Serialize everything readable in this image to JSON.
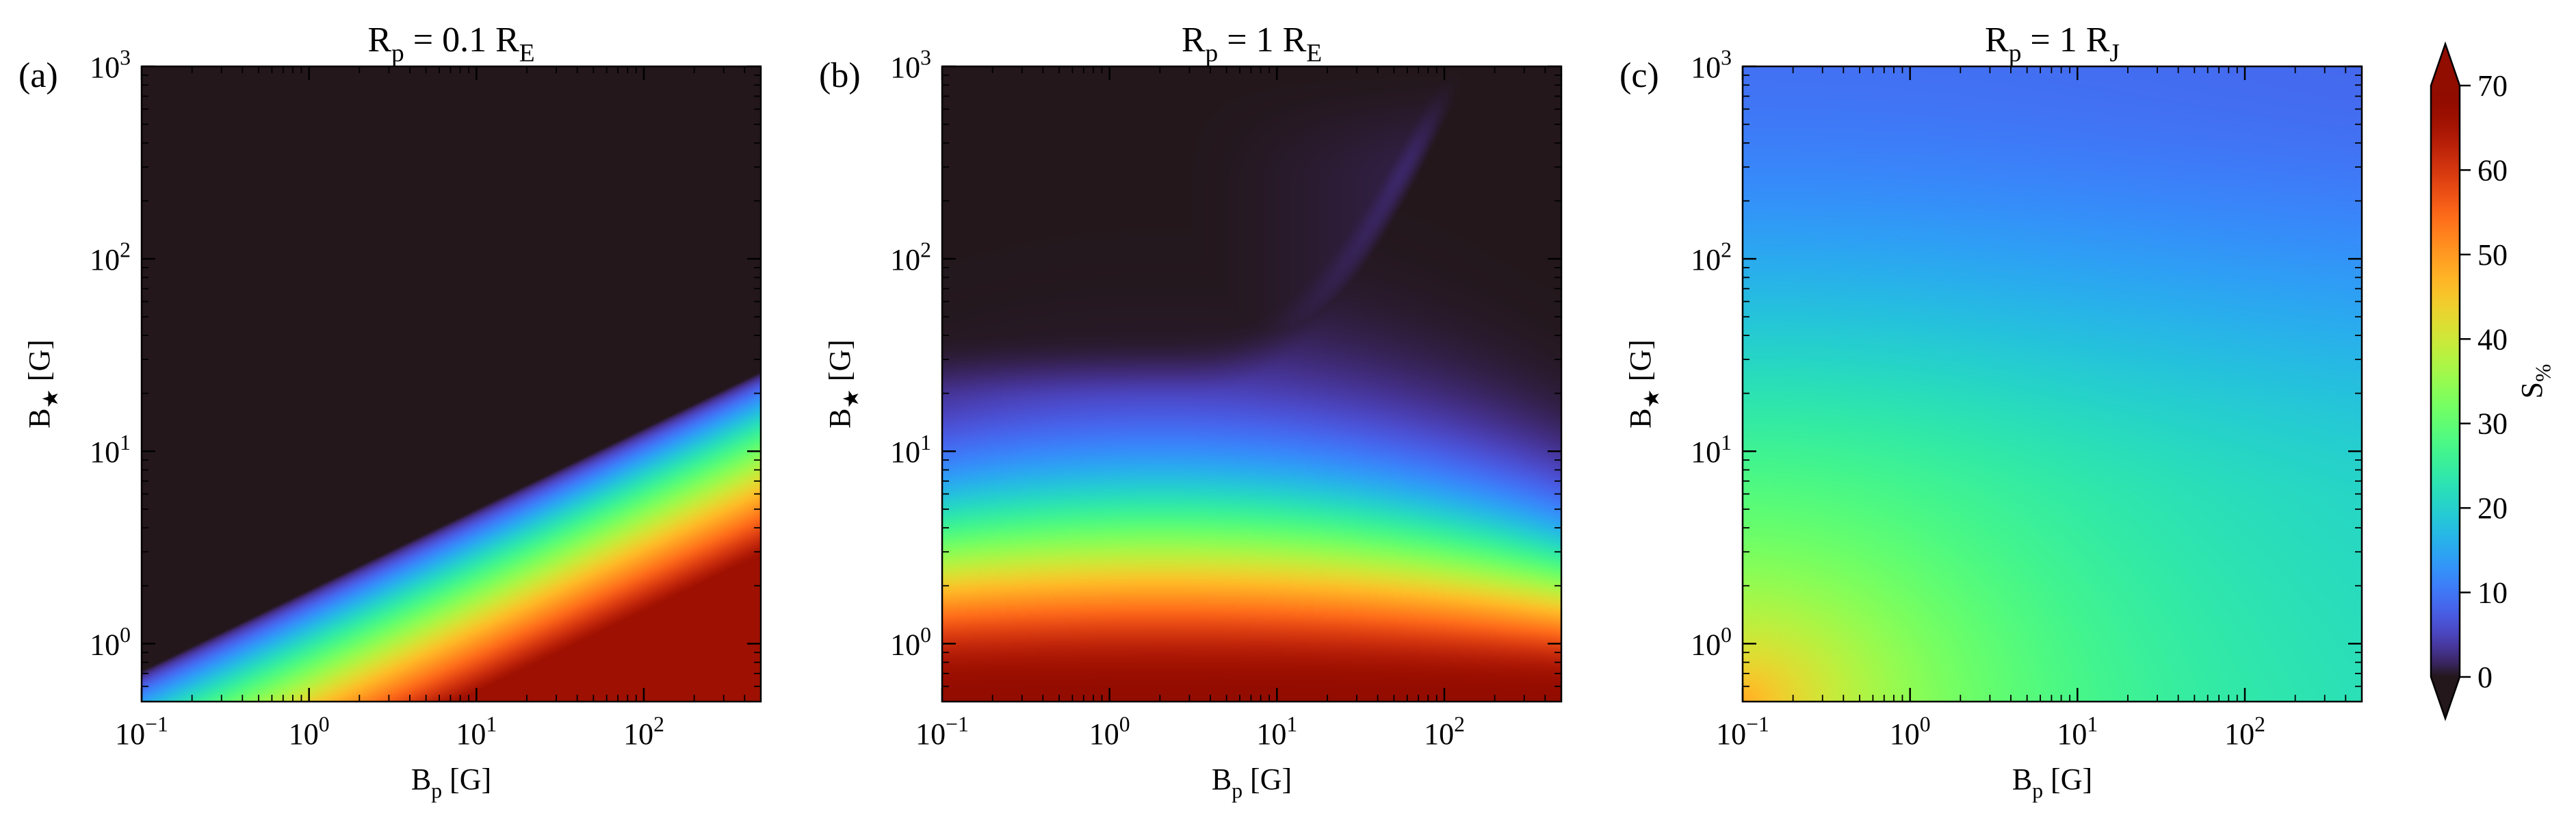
{
  "chart_data": [
    {
      "type": "heatmap",
      "panel_label": "(a)",
      "title": {
        "prefix": "R",
        "sub": "p",
        "mid": " = 0.1 R",
        "sub2": "E"
      },
      "xlabel": {
        "main": "B",
        "sub": "p",
        "rest": " [G]"
      },
      "ylabel": {
        "main": "B",
        "sub": "★",
        "rest": " [G]"
      },
      "x_scale": "log",
      "y_scale": "log",
      "xlim": [
        0.1,
        500
      ],
      "ylim": [
        0.5,
        1000
      ],
      "x_ticks": [
        {
          "base": "10",
          "exp": "−1"
        },
        {
          "base": "10",
          "exp": "0"
        },
        {
          "base": "10",
          "exp": "1"
        },
        {
          "base": "10",
          "exp": "2"
        }
      ],
      "y_ticks": [
        {
          "base": "10",
          "exp": "0"
        },
        {
          "base": "10",
          "exp": "1"
        },
        {
          "base": "10",
          "exp": "2"
        },
        {
          "base": "10",
          "exp": "3"
        }
      ],
      "model": {
        "kind": "ramp",
        "s_max": 66,
        "boundary_b_star_at_bp_0_1": 0.72,
        "boundary_slope": 0.42,
        "band_decades": 0.95
      }
    },
    {
      "type": "heatmap",
      "panel_label": "(b)",
      "title": {
        "prefix": "R",
        "sub": "p",
        "mid": " = 1 R",
        "sub2": "E"
      },
      "xlabel": {
        "main": "B",
        "sub": "p",
        "rest": " [G]"
      },
      "ylabel": {
        "main": "B",
        "sub": "★",
        "rest": " [G]"
      },
      "x_scale": "log",
      "y_scale": "log",
      "xlim": [
        0.1,
        500
      ],
      "ylim": [
        0.5,
        1000
      ],
      "x_ticks": [
        {
          "base": "10",
          "exp": "−1"
        },
        {
          "base": "10",
          "exp": "0"
        },
        {
          "base": "10",
          "exp": "1"
        },
        {
          "base": "10",
          "exp": "2"
        }
      ],
      "y_ticks": [
        {
          "base": "10",
          "exp": "0"
        },
        {
          "base": "10",
          "exp": "1"
        },
        {
          "base": "10",
          "exp": "2"
        },
        {
          "base": "10",
          "exp": "3"
        }
      ],
      "model": {
        "kind": "dome",
        "s_max": 68,
        "peak_b_p": 2.0,
        "high_field_floor": 10,
        "dark_b_star": 30
      }
    },
    {
      "type": "heatmap",
      "panel_label": "(c)",
      "title": {
        "prefix": "R",
        "sub": "p",
        "mid": " = 1 R",
        "sub2": "J"
      },
      "xlabel": {
        "main": "B",
        "sub": "p",
        "rest": " [G]"
      },
      "ylabel": {
        "main": "B",
        "sub": "★",
        "rest": " [G]"
      },
      "x_scale": "log",
      "y_scale": "log",
      "xlim": [
        0.1,
        500
      ],
      "ylim": [
        0.5,
        1000
      ],
      "x_ticks": [
        {
          "base": "10",
          "exp": "−1"
        },
        {
          "base": "10",
          "exp": "0"
        },
        {
          "base": "10",
          "exp": "1"
        },
        {
          "base": "10",
          "exp": "2"
        }
      ],
      "y_ticks": [
        {
          "base": "10",
          "exp": "0"
        },
        {
          "base": "10",
          "exp": "1"
        },
        {
          "base": "10",
          "exp": "2"
        },
        {
          "base": "10",
          "exp": "3"
        }
      ],
      "model": {
        "kind": "plateau",
        "s_corner": 48,
        "s_right_edge": 20,
        "s_top": 8
      }
    }
  ],
  "colorbar": {
    "label": {
      "main": "S",
      "sub": "%"
    },
    "range": [
      0,
      70
    ],
    "ticks": [
      "0",
      "10",
      "20",
      "30",
      "40",
      "50",
      "60",
      "70"
    ],
    "colormap": "turbo",
    "extend": "both"
  }
}
